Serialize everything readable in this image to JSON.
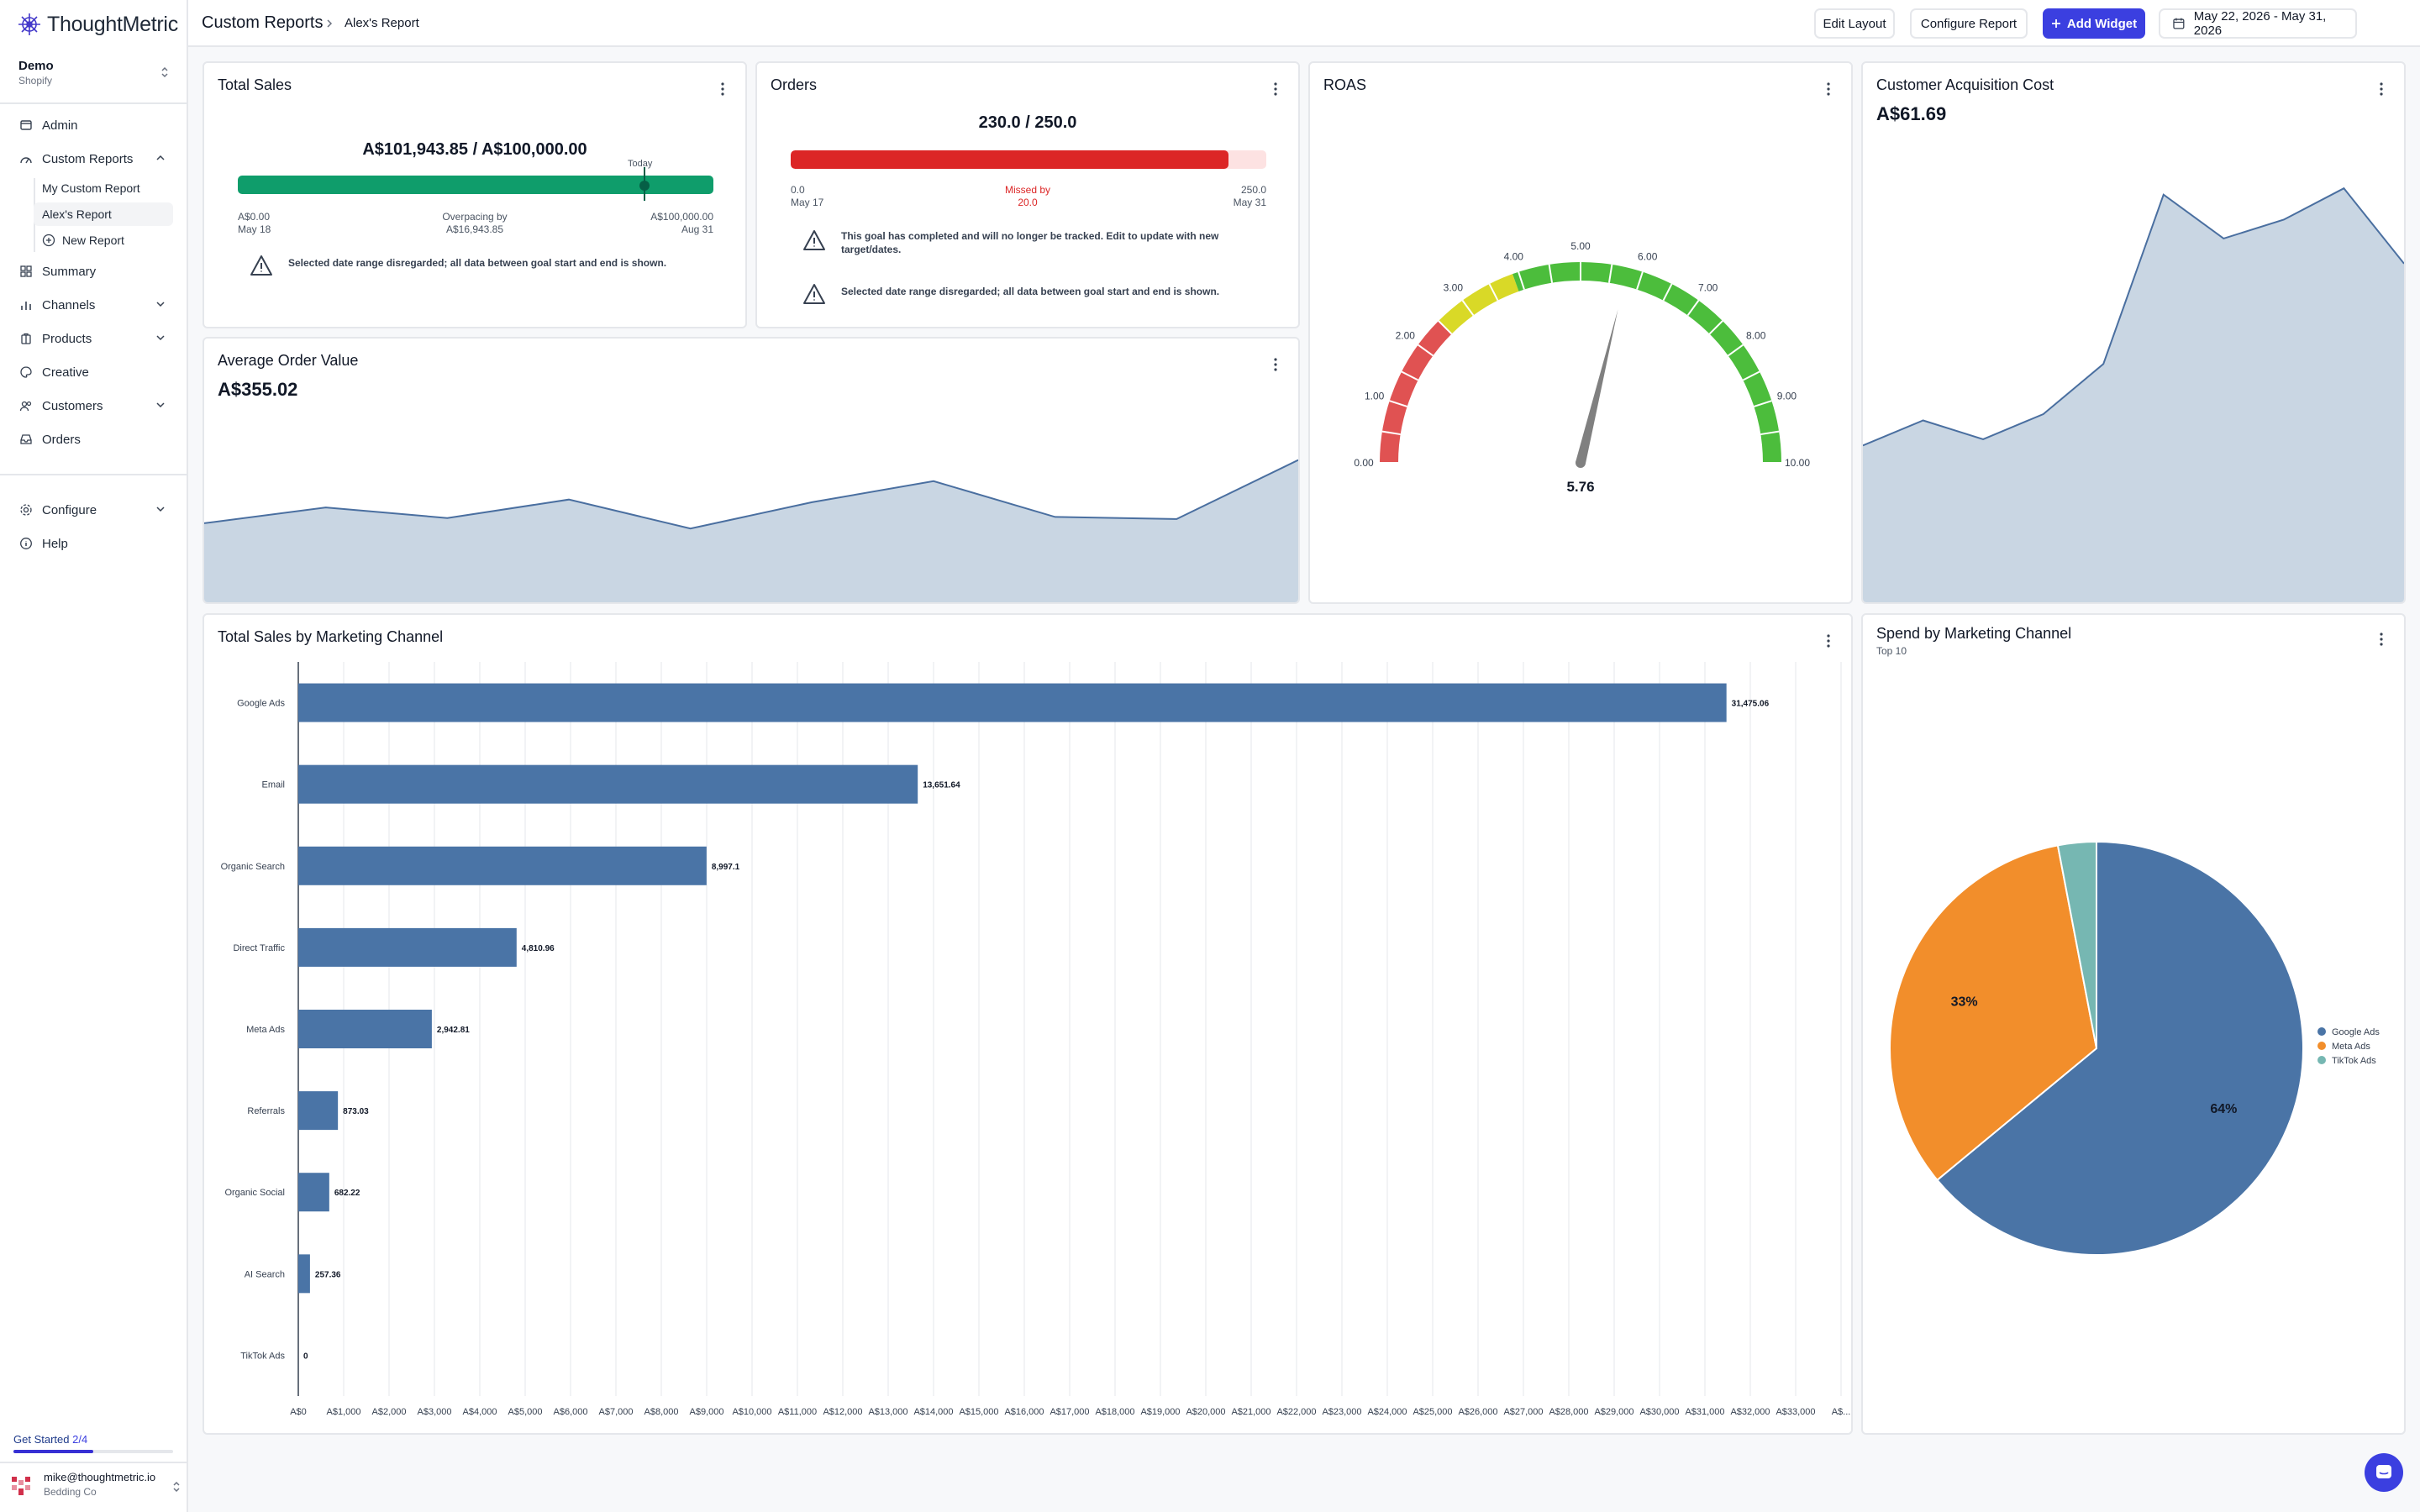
{
  "app": {
    "logo_text": "ThoughtMetric"
  },
  "org": {
    "name": "Demo",
    "platform": "Shopify"
  },
  "sidebar": {
    "items": [
      {
        "label": "Admin",
        "icon": "admin-icon"
      },
      {
        "label": "Custom Reports",
        "icon": "reports-icon"
      },
      {
        "label": "Summary",
        "icon": "summary-icon"
      },
      {
        "label": "Channels",
        "icon": "channels-icon"
      },
      {
        "label": "Products",
        "icon": "products-icon"
      },
      {
        "label": "Creative",
        "icon": "creative-icon"
      },
      {
        "label": "Customers",
        "icon": "customers-icon"
      },
      {
        "label": "Orders",
        "icon": "orders-icon"
      },
      {
        "label": "Configure",
        "icon": "configure-icon"
      },
      {
        "label": "Help",
        "icon": "help-icon"
      }
    ],
    "sub_items": [
      "My Custom Report",
      "Alex's Report",
      "New Report"
    ],
    "get_started": {
      "label": "Get Started",
      "progress": "2/4",
      "fraction": 0.5
    },
    "user": {
      "email": "mike@thoughtmetric.io",
      "company": "Bedding Co"
    }
  },
  "header": {
    "breadcrumb_root": "Custom Reports",
    "breadcrumb_current": "Alex's Report",
    "edit_layout": "Edit Layout",
    "configure_report": "Configure Report",
    "add_widget": "Add Widget",
    "date_range": "May 22, 2026 - May 31, 2026"
  },
  "widgets": {
    "total_sales": {
      "title": "Total Sales",
      "summary": "A$101,943.85 / A$100,000.00",
      "today_label": "Today",
      "start_value": "A$0.00",
      "start_date": "May 18",
      "status_line1": "Overpacing by",
      "status_line2": "A$16,943.85",
      "end_value": "A$100,000.00",
      "end_date": "Aug 31",
      "warning": "Selected date range disregarded; all data between goal start and end is shown.",
      "color": "#0f9d6b"
    },
    "orders": {
      "title": "Orders",
      "summary": "230.0 / 250.0",
      "progress": 0.92,
      "start_value": "0.0",
      "start_date": "May 17",
      "status_line1": "Missed by",
      "status_line2": "20.0",
      "end_value": "250.0",
      "end_date": "May 31",
      "warning1": "This goal has completed and will no longer be tracked. Edit to update with new target/dates.",
      "warning2": "Selected date range disregarded; all data between goal start and end is shown.",
      "color": "#dc2626"
    },
    "roas": {
      "title": "ROAS",
      "value": "5.76",
      "ticks": [
        "0.00",
        "1.00",
        "2.00",
        "3.00",
        "4.00",
        "5.00",
        "6.00",
        "7.00",
        "8.00",
        "9.00",
        "10.00"
      ]
    },
    "cac": {
      "title": "Customer Acquisition Cost",
      "value": "A$61.69"
    },
    "aov": {
      "title": "Average Order Value",
      "value": "A$355.02"
    },
    "sales_by_channel": {
      "title": "Total Sales by Marketing Channel"
    },
    "spend_by_channel": {
      "title": "Spend by Marketing Channel",
      "subtitle": "Top 10"
    }
  },
  "chart_data": [
    {
      "type": "area",
      "title": "Average Order Value",
      "values": [
        300,
        330,
        310,
        345,
        290,
        340,
        380,
        312,
        308,
        420
      ],
      "ylim": [
        150,
        520
      ],
      "color": "#c9d6e3"
    },
    {
      "type": "area",
      "title": "Customer Acquisition Cost",
      "values": [
        45,
        49,
        46,
        50,
        58,
        85,
        78,
        81,
        86,
        74
      ],
      "ylim": [
        20,
        95
      ],
      "color": "#c9d6e3"
    },
    {
      "type": "gauge",
      "title": "ROAS",
      "value": 5.76,
      "range": [
        0,
        10
      ],
      "bands": [
        {
          "from": 0,
          "to": 2.5,
          "color": "#e05252"
        },
        {
          "from": 2.5,
          "to": 3.9,
          "color": "#d9d927"
        },
        {
          "from": 3.9,
          "to": 10,
          "color": "#4cbd3c"
        }
      ]
    },
    {
      "type": "bar",
      "orientation": "horizontal",
      "title": "Total Sales by Marketing Channel",
      "categories": [
        "Google Ads",
        "Email",
        "Organic Search",
        "Direct Traffic",
        "Meta Ads",
        "Referrals",
        "Organic Social",
        "AI Search",
        "TikTok Ads"
      ],
      "values": [
        31475.06,
        13651.64,
        8997.1,
        4810.96,
        2942.81,
        873.03,
        682.22,
        257.36,
        0
      ],
      "value_labels": [
        "31,475.06",
        "13,651.64",
        "8,997.1",
        "4,810.96",
        "2,942.81",
        "873.03",
        "682.22",
        "257.36",
        "0"
      ],
      "x_ticks": [
        "A$0",
        "A$1,000",
        "A$2,000",
        "A$3,000",
        "A$4,000",
        "A$5,000",
        "A$6,000",
        "A$7,000",
        "A$8,000",
        "A$9,000",
        "A$10,000",
        "A$11,000",
        "A$12,000",
        "A$13,000",
        "A$14,000",
        "A$15,000",
        "A$16,000",
        "A$17,000",
        "A$18,000",
        "A$19,000",
        "A$20,000",
        "A$21,000",
        "A$22,000",
        "A$23,000",
        "A$24,000",
        "A$25,000",
        "A$26,000",
        "A$27,000",
        "A$28,000",
        "A$29,000",
        "A$30,000",
        "A$31,000",
        "A$32,000",
        "A$33,000",
        "A$..."
      ],
      "xlim": [
        0,
        34000
      ],
      "color": "#4a74a6"
    },
    {
      "type": "pie",
      "title": "Spend by Marketing Channel",
      "subtitle": "Top 10",
      "slices": [
        {
          "name": "Google Ads",
          "value": 64,
          "label": "64%",
          "color": "#4a74a6"
        },
        {
          "name": "Meta Ads",
          "value": 33,
          "label": "33%",
          "color": "#f28e2b"
        },
        {
          "name": "TikTok Ads",
          "value": 3,
          "label": "",
          "color": "#76b7b2"
        }
      ],
      "legend_position": "right"
    }
  ]
}
